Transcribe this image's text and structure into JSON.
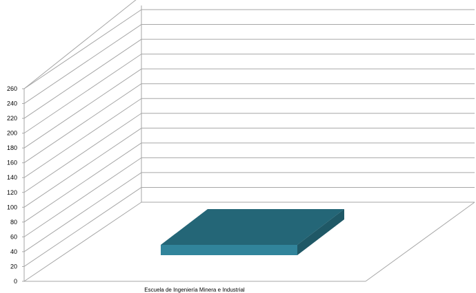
{
  "chart_data": {
    "type": "bar",
    "title": "",
    "xlabel": "",
    "ylabel": "",
    "categories": [
      "Escuela de Ingeniería Minera e Industrial"
    ],
    "series": [
      {
        "values": [
          13
        ],
        "color": "#31849b"
      }
    ],
    "ylim": [
      0,
      260
    ],
    "yticks": [
      0,
      20,
      40,
      60,
      80,
      100,
      120,
      140,
      160,
      180,
      200,
      220,
      240,
      260
    ],
    "grid": true,
    "three_d": true,
    "legend": "none"
  }
}
